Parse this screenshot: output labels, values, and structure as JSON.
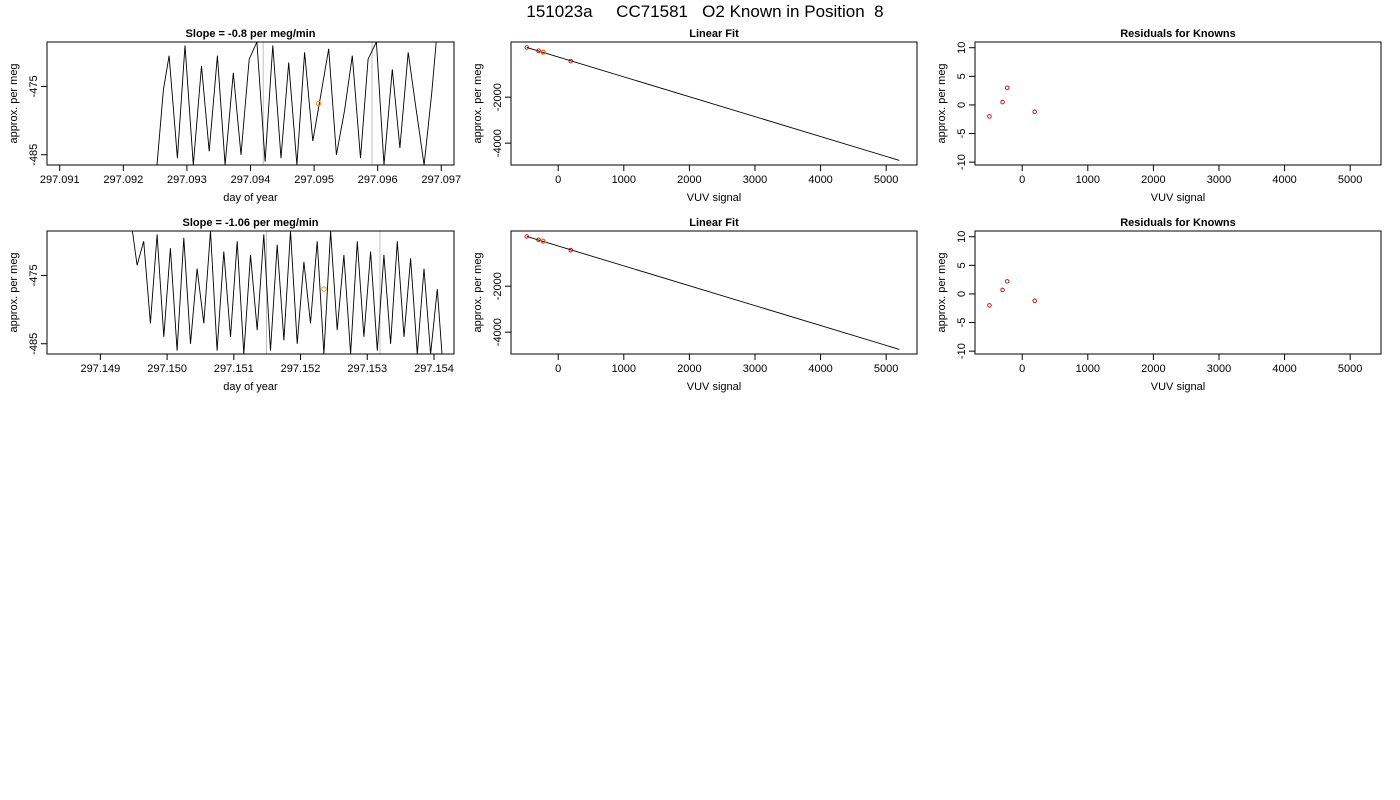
{
  "figure_title": "151023a     CC71581   O2 Known in Position  8",
  "colors": {
    "trace": "#000000",
    "marker": "#ff8c00",
    "known": "#cc0000",
    "reference_line": "#c0c0c0",
    "frame": "#000000"
  },
  "chart_data": [
    {
      "id": "time-1",
      "type": "line",
      "title": "Slope =  -0.8  per meg/min",
      "xlabel": "day of year",
      "ylabel": "approx. per meg",
      "xlim": [
        297.0908,
        297.0972
      ],
      "ylim": [
        -486.5,
        -468.5
      ],
      "xticks": [
        "297.091",
        "297.092",
        "297.093",
        "297.094",
        "297.095",
        "297.096",
        "297.097"
      ],
      "yticks": [
        "-475",
        "-485"
      ],
      "ytick_values": [
        -475,
        -485
      ],
      "vlines": [
        297.0942,
        297.09591
      ],
      "series": [
        {
          "x": [
            297.09253,
            297.09263,
            297.09272,
            297.09285,
            297.09297,
            297.0931,
            297.09323,
            297.09335,
            297.09348,
            297.0936,
            297.09373,
            297.09385,
            297.09398,
            297.0941,
            297.09423,
            297.09435,
            297.09448,
            297.0946,
            297.09473,
            297.09485,
            297.09498,
            297.0951,
            297.09523,
            297.09535,
            297.09548,
            297.0956,
            297.09573,
            297.09585,
            297.09598,
            297.0961,
            297.09623,
            297.09635,
            297.09648,
            297.0966,
            297.09673,
            297.09685,
            297.09692
          ],
          "y": [
            -486.5,
            -475.5,
            -470.5,
            -485.5,
            -469.0,
            -486.5,
            -472.0,
            -484.5,
            -470.5,
            -486.5,
            -473.0,
            -485.0,
            -471.0,
            -468.5,
            -486.0,
            -469.0,
            -485.5,
            -471.5,
            -486.5,
            -470.0,
            -483.0,
            -476.5,
            -469.5,
            -485.0,
            -478.5,
            -470.5,
            -485.5,
            -471.0,
            -468.5,
            -486.5,
            -472.5,
            -484.0,
            -470.0,
            -478.0,
            -486.5,
            -476.0,
            -468.5
          ]
        }
      ],
      "markers": [
        {
          "x": 297.09507,
          "y": -477.5
        }
      ]
    },
    {
      "id": "fit-1",
      "type": "scatter",
      "title": "Linear Fit",
      "xlabel": "VUV signal",
      "ylabel": "approx. per meg",
      "xlim": [
        -720,
        5470
      ],
      "ylim": [
        -4950,
        400
      ],
      "xticks": [
        "0",
        "1000",
        "2000",
        "3000",
        "4000",
        "5000"
      ],
      "xtick_values": [
        0,
        1000,
        2000,
        3000,
        4000,
        5000
      ],
      "yticks": [
        "-2000",
        "-4000"
      ],
      "ytick_values": [
        -2000,
        -4000
      ],
      "line": {
        "x": [
          -480,
          5200
        ],
        "y": [
          163,
          -4750
        ]
      },
      "known_points": {
        "x": [
          -480,
          -300,
          -230,
          190
        ],
        "y": [
          163,
          19,
          -40,
          -430
        ]
      },
      "sample_points": {
        "x": [
          -230
        ],
        "y": [
          -44
        ]
      }
    },
    {
      "id": "resid-1",
      "type": "scatter",
      "title": "Residuals for Knowns",
      "xlabel": "VUV signal",
      "ylabel": "approx. per meg",
      "xlim": [
        -720,
        5470
      ],
      "ylim": [
        -10.5,
        11
      ],
      "xticks": [
        "0",
        "1000",
        "2000",
        "3000",
        "4000",
        "5000"
      ],
      "xtick_values": [
        0,
        1000,
        2000,
        3000,
        4000,
        5000
      ],
      "yticks": [
        "-10",
        "-5",
        "0",
        "5",
        "10"
      ],
      "ytick_values": [
        -10,
        -5,
        0,
        5,
        10
      ],
      "known_points": {
        "x": [
          -500,
          -300,
          -230,
          190
        ],
        "y": [
          -2.0,
          0.5,
          3.0,
          -1.2
        ]
      }
    },
    {
      "id": "time-2",
      "type": "line",
      "title": "Slope =  -1.06  per meg/min",
      "xlabel": "day of year",
      "ylabel": "approx. per meg",
      "xlim": [
        297.1482,
        297.1543
      ],
      "ylim": [
        -486.5,
        -468.5
      ],
      "xticks": [
        "297.149",
        "297.150",
        "297.151",
        "297.152",
        "297.153",
        "297.154"
      ],
      "yticks": [
        "-475",
        "-485"
      ],
      "ytick_values": [
        -475,
        -485
      ],
      "vlines": [
        297.15149,
        297.15319
      ],
      "series": [
        {
          "x": [
            297.14948,
            297.14955,
            297.14965,
            297.14975,
            297.14985,
            297.14995,
            297.15005,
            297.15015,
            297.15025,
            297.15035,
            297.15045,
            297.15055,
            297.15065,
            297.15075,
            297.15085,
            297.15095,
            297.15105,
            297.15115,
            297.15125,
            297.15135,
            297.15145,
            297.15155,
            297.15165,
            297.15175,
            297.15185,
            297.15195,
            297.15205,
            297.15215,
            297.15225,
            297.15235,
            297.15245,
            297.15255,
            297.15265,
            297.15275,
            297.15285,
            297.15295,
            297.15305,
            297.15315,
            297.15325,
            297.15335,
            297.15345,
            297.15355,
            297.15365,
            297.15375,
            297.15385,
            297.15395,
            297.15405,
            297.15412
          ],
          "y": [
            -468.5,
            -473.5,
            -470.0,
            -482.0,
            -469.0,
            -484.0,
            -471.0,
            -486.0,
            -469.5,
            -485.0,
            -474.0,
            -482.0,
            -468.5,
            -486.0,
            -471.5,
            -484.0,
            -470.0,
            -486.5,
            -472.0,
            -483.0,
            -469.0,
            -486.0,
            -470.5,
            -484.5,
            -468.5,
            -485.0,
            -473.0,
            -482.0,
            -470.0,
            -486.5,
            -468.5,
            -483.0,
            -472.0,
            -486.5,
            -470.0,
            -484.0,
            -471.5,
            -486.0,
            -472.0,
            -485.0,
            -470.0,
            -484.0,
            -472.5,
            -486.5,
            -474.0,
            -486.5,
            -477.0,
            -486.5
          ]
        }
      ],
      "markers": [
        {
          "x": 297.15235,
          "y": -477.0
        }
      ]
    },
    {
      "id": "fit-2",
      "type": "scatter",
      "title": "Linear Fit",
      "xlabel": "VUV signal",
      "ylabel": "approx. per meg",
      "xlim": [
        -720,
        5470
      ],
      "ylim": [
        -4950,
        400
      ],
      "xticks": [
        "0",
        "1000",
        "2000",
        "3000",
        "4000",
        "5000"
      ],
      "xtick_values": [
        0,
        1000,
        2000,
        3000,
        4000,
        5000
      ],
      "yticks": [
        "-2000",
        "-4000"
      ],
      "ytick_values": [
        -2000,
        -4000
      ],
      "line": {
        "x": [
          -480,
          5200
        ],
        "y": [
          163,
          -4750
        ]
      },
      "known_points": {
        "x": [
          -480,
          -300,
          -230,
          190
        ],
        "y": [
          163,
          19,
          -40,
          -430
        ]
      },
      "sample_points": {
        "x": [
          -230
        ],
        "y": [
          -44
        ]
      }
    },
    {
      "id": "resid-2",
      "type": "scatter",
      "title": "Residuals for Knowns",
      "xlabel": "VUV signal",
      "ylabel": "approx. per meg",
      "xlim": [
        -720,
        5470
      ],
      "ylim": [
        -10.5,
        11
      ],
      "xticks": [
        "0",
        "1000",
        "2000",
        "3000",
        "4000",
        "5000"
      ],
      "xtick_values": [
        0,
        1000,
        2000,
        3000,
        4000,
        5000
      ],
      "yticks": [
        "-10",
        "-5",
        "0",
        "5",
        "10"
      ],
      "ytick_values": [
        -10,
        -5,
        0,
        5,
        10
      ],
      "known_points": {
        "x": [
          -500,
          -300,
          -230,
          190
        ],
        "y": [
          -2.0,
          0.7,
          2.2,
          -1.2
        ]
      }
    }
  ]
}
